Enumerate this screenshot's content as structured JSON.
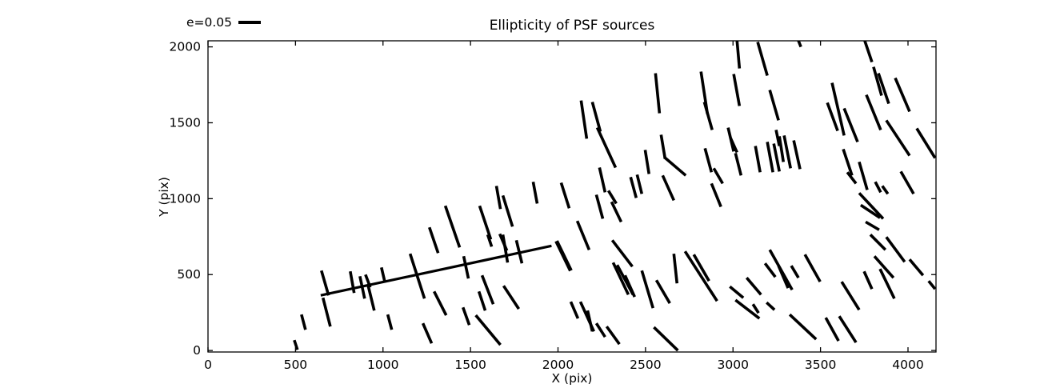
{
  "figure": {
    "title": "Ellipticity of PSF sources",
    "xlabel": "X (pix)",
    "ylabel": "Y (pix)",
    "legend": {
      "label": "e=0.05"
    },
    "colors": {
      "stick": "#000000",
      "axis": "#000000",
      "background": "#ffffff"
    }
  },
  "chart_data": {
    "type": "line",
    "subtype": "ellipticity-stick-field (quiver-style whiskers, headless)",
    "title": "Ellipticity of PSF sources",
    "xlabel": "X (pix)",
    "ylabel": "Y (pix)",
    "xlim": [
      0,
      4160
    ],
    "ylim": [
      -10,
      2040
    ],
    "xticks": [
      0,
      500,
      1000,
      1500,
      2000,
      2500,
      3000,
      3500,
      4000
    ],
    "yticks": [
      0,
      500,
      1000,
      1500,
      2000
    ],
    "grid": false,
    "legend": {
      "label": "e=0.05",
      "position": "upper-left-outside",
      "stick_length_data_units": 123
    },
    "long_segment": [
      644,
      363,
      1963,
      689
    ],
    "long_segment_end_cap": [
      1991,
      721,
      2073,
      526
    ],
    "segments": [
      [
        648,
        526,
        689,
        363
      ],
      [
        657,
        347,
        699,
        158
      ],
      [
        813,
        521,
        835,
        379
      ],
      [
        868,
        489,
        895,
        342
      ],
      [
        900,
        500,
        927,
        416
      ],
      [
        913,
        437,
        950,
        263
      ],
      [
        991,
        547,
        1009,
        458
      ],
      [
        534,
        237,
        557,
        137
      ],
      [
        493,
        68,
        511,
        5
      ],
      [
        1027,
        237,
        1050,
        137
      ],
      [
        1228,
        179,
        1278,
        47
      ],
      [
        1155,
        637,
        1237,
        342
      ],
      [
        1265,
        811,
        1315,
        642
      ],
      [
        1356,
        953,
        1438,
        679
      ],
      [
        1292,
        389,
        1361,
        232
      ],
      [
        1461,
        621,
        1488,
        474
      ],
      [
        1457,
        284,
        1493,
        168
      ],
      [
        1548,
        389,
        1584,
        263
      ],
      [
        1566,
        495,
        1630,
        305
      ],
      [
        1598,
        763,
        1621,
        684
      ],
      [
        1667,
        768,
        1708,
        658
      ],
      [
        1685,
        763,
        1712,
        579
      ],
      [
        1762,
        726,
        1794,
        574
      ],
      [
        1552,
        953,
        1616,
        732
      ],
      [
        1648,
        1084,
        1671,
        932
      ],
      [
        1685,
        1021,
        1740,
        816
      ],
      [
        1858,
        1111,
        1881,
        968
      ],
      [
        2018,
        1105,
        2064,
        937
      ],
      [
        1530,
        232,
        1671,
        37
      ],
      [
        1689,
        426,
        1776,
        274
      ],
      [
        2073,
        321,
        2114,
        211
      ],
      [
        2128,
        321,
        2205,
        126
      ],
      [
        2169,
        263,
        2196,
        126
      ],
      [
        2219,
        179,
        2269,
        89
      ],
      [
        2278,
        158,
        2351,
        42
      ],
      [
        2110,
        853,
        2178,
        663
      ],
      [
        2219,
        1026,
        2256,
        868
      ],
      [
        2288,
        1053,
        2333,
        968
      ],
      [
        2306,
        979,
        2361,
        847
      ],
      [
        2310,
        726,
        2425,
        553
      ],
      [
        2315,
        579,
        2402,
        368
      ],
      [
        2338,
        563,
        2429,
        368
      ],
      [
        2383,
        495,
        2438,
        353
      ],
      [
        2415,
        1142,
        2447,
        1005
      ],
      [
        2452,
        1158,
        2479,
        1032
      ],
      [
        2479,
        526,
        2543,
        279
      ],
      [
        2562,
        463,
        2639,
        311
      ],
      [
        2548,
        153,
        2685,
        0
      ],
      [
        2598,
        1153,
        2662,
        989
      ],
      [
        2662,
        637,
        2680,
        442
      ],
      [
        2726,
        653,
        2909,
        326
      ],
      [
        2776,
        632,
        2863,
        458
      ],
      [
        2877,
        1100,
        2931,
        947
      ],
      [
        2982,
        421,
        3059,
        347
      ],
      [
        3014,
        332,
        3151,
        211
      ],
      [
        3192,
        316,
        3237,
        268
      ],
      [
        3078,
        479,
        3160,
        368
      ],
      [
        3023,
        2040,
        3037,
        1858
      ],
      [
        2557,
        1826,
        2580,
        1563
      ],
      [
        2132,
        1647,
        2164,
        1395
      ],
      [
        2196,
        1637,
        2242,
        1442
      ],
      [
        2224,
        1468,
        2329,
        1205
      ],
      [
        2237,
        1205,
        2269,
        1042
      ],
      [
        2498,
        1321,
        2520,
        1163
      ],
      [
        2589,
        1421,
        2612,
        1263
      ],
      [
        2607,
        1274,
        2730,
        1153
      ],
      [
        2817,
        1837,
        2854,
        1558
      ],
      [
        2836,
        1637,
        2881,
        1453
      ],
      [
        2840,
        1332,
        2877,
        1174
      ],
      [
        2890,
        1200,
        2941,
        1100
      ],
      [
        3004,
        1821,
        3037,
        1611
      ],
      [
        2972,
        1468,
        3004,
        1311
      ],
      [
        2986,
        1400,
        3023,
        1305
      ],
      [
        3014,
        1300,
        3046,
        1153
      ],
      [
        3374,
        2040,
        3388,
        2000
      ],
      [
        3141,
        2032,
        3196,
        1811
      ],
      [
        3210,
        1716,
        3260,
        1516
      ],
      [
        3128,
        1347,
        3155,
        1174
      ],
      [
        3196,
        1374,
        3228,
        1174
      ],
      [
        3233,
        1363,
        3265,
        1179
      ],
      [
        3265,
        1411,
        3288,
        1242
      ],
      [
        3292,
        1416,
        3329,
        1200
      ],
      [
        3347,
        1384,
        3383,
        1195
      ],
      [
        3246,
        1453,
        3265,
        1347
      ],
      [
        3566,
        1763,
        3635,
        1416
      ],
      [
        3539,
        1632,
        3598,
        1447
      ],
      [
        3635,
        1595,
        3712,
        1374
      ],
      [
        3753,
        2040,
        3794,
        1900
      ],
      [
        3803,
        1868,
        3849,
        1679
      ],
      [
        3831,
        1826,
        3890,
        1626
      ],
      [
        3927,
        1795,
        4009,
        1574
      ],
      [
        3762,
        1684,
        3844,
        1453
      ],
      [
        3876,
        1516,
        4009,
        1284
      ],
      [
        4050,
        1463,
        4155,
        1268
      ],
      [
        3630,
        1326,
        3680,
        1153
      ],
      [
        3653,
        1174,
        3703,
        1100
      ],
      [
        3721,
        1242,
        3767,
        1058
      ],
      [
        3959,
        1179,
        4032,
        1032
      ],
      [
        3813,
        1111,
        3844,
        1042
      ],
      [
        3853,
        1084,
        3885,
        1032
      ],
      [
        3721,
        1037,
        3858,
        868
      ],
      [
        3730,
        958,
        3840,
        874
      ],
      [
        3758,
        847,
        3835,
        795
      ],
      [
        3785,
        763,
        3871,
        663
      ],
      [
        3876,
        747,
        3981,
        584
      ],
      [
        3808,
        621,
        3917,
        479
      ],
      [
        3840,
        537,
        3922,
        342
      ],
      [
        3749,
        521,
        3794,
        405
      ],
      [
        4009,
        600,
        4086,
        495
      ],
      [
        4118,
        458,
        4155,
        405
      ],
      [
        3210,
        663,
        3338,
        400
      ],
      [
        3183,
        574,
        3242,
        484
      ],
      [
        3260,
        558,
        3315,
        411
      ],
      [
        3333,
        558,
        3374,
        479
      ],
      [
        3411,
        632,
        3498,
        453
      ],
      [
        3324,
        237,
        3475,
        74
      ],
      [
        3530,
        216,
        3603,
        63
      ],
      [
        3607,
        226,
        3703,
        53
      ],
      [
        3621,
        453,
        3721,
        268
      ],
      [
        3114,
        305,
        3146,
        247
      ]
    ]
  }
}
